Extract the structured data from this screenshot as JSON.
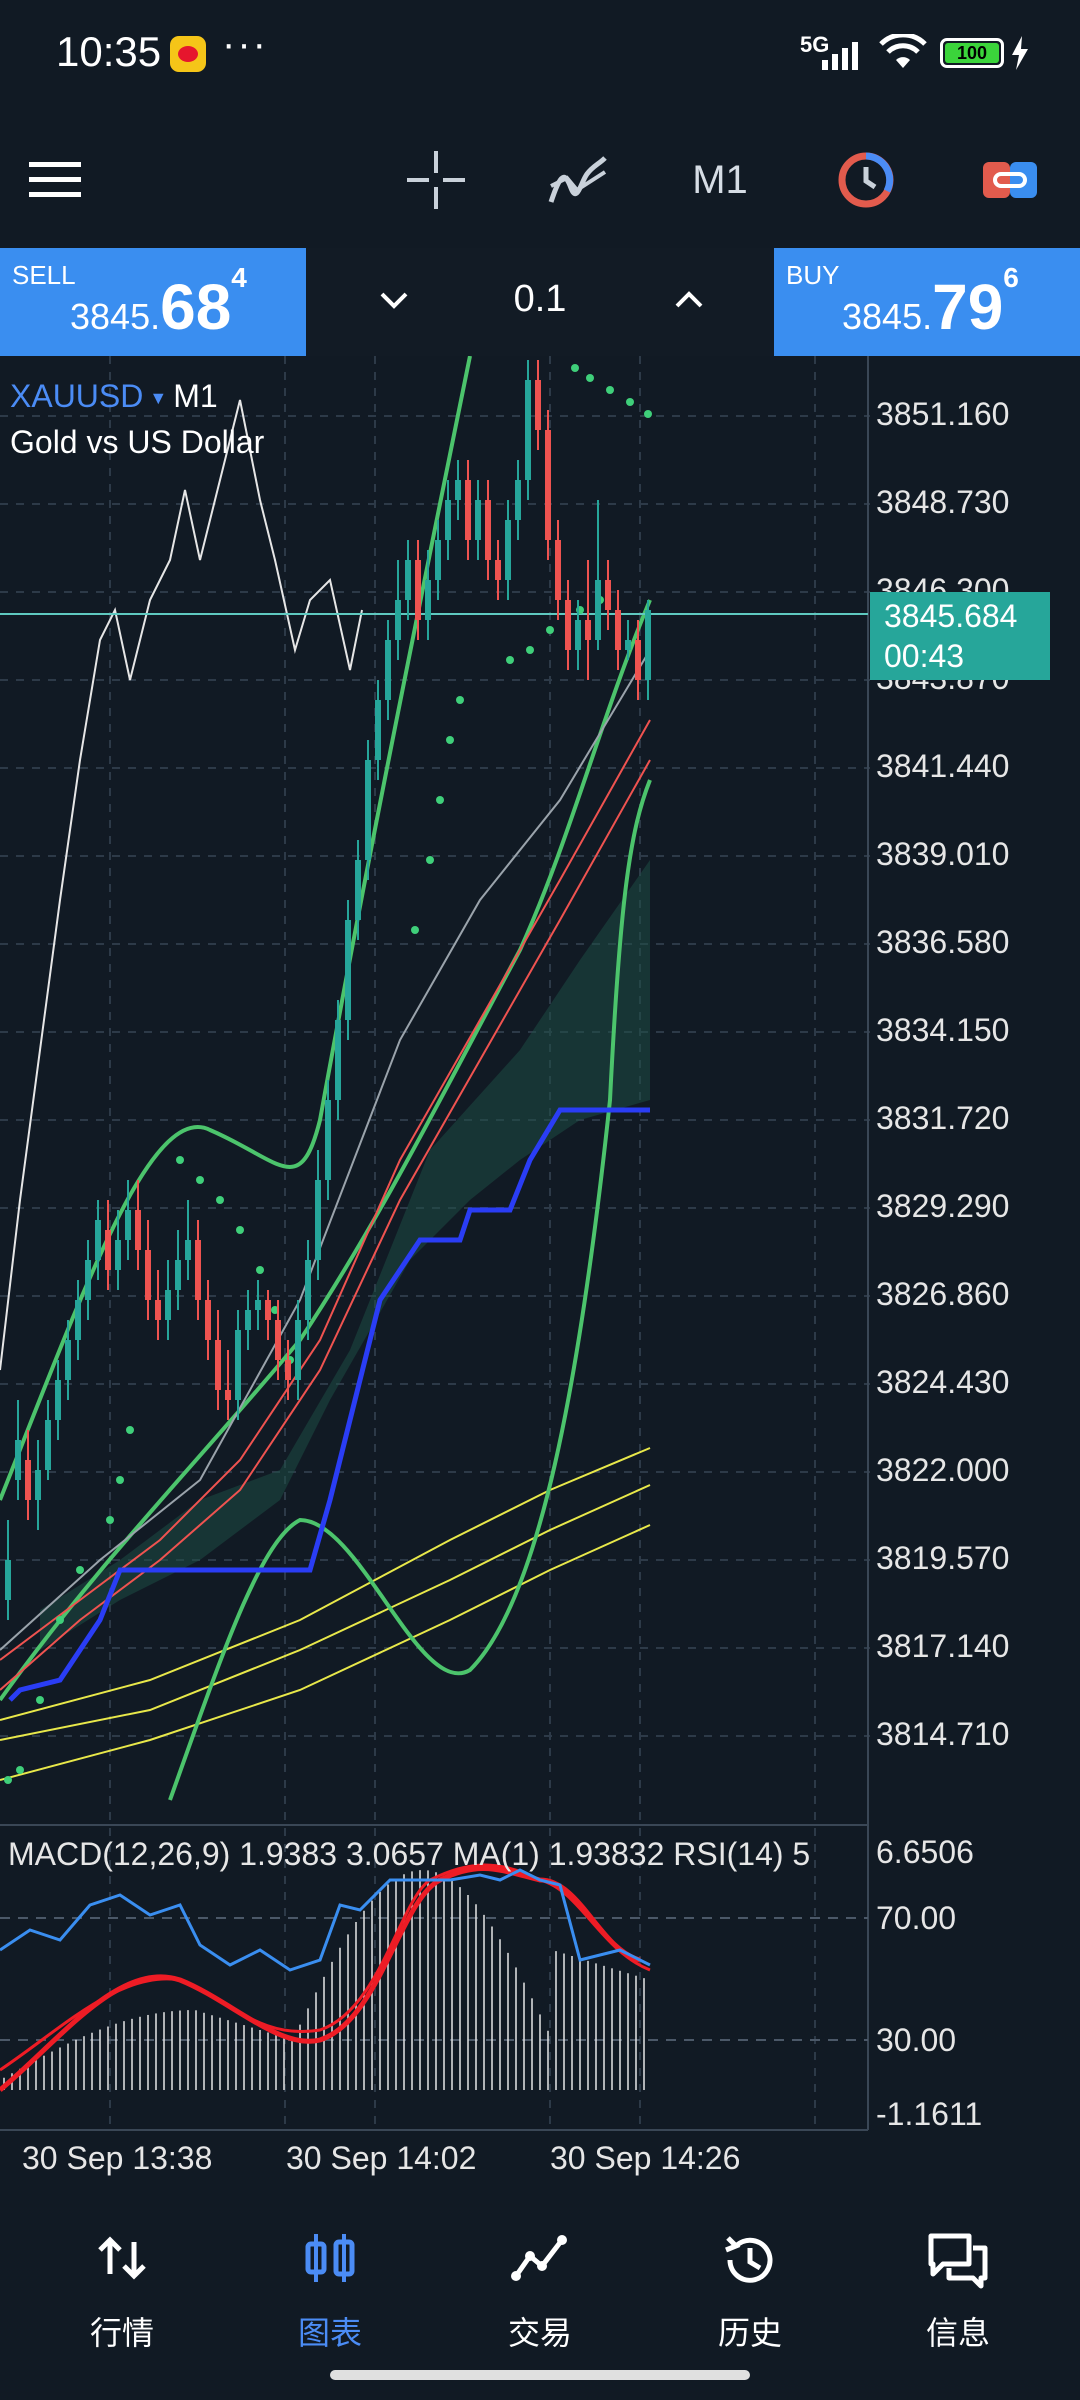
{
  "status_bar": {
    "time": "10:35",
    "dots": "···",
    "network": "5G",
    "battery": "100"
  },
  "toolbar": {
    "timeframe": "M1"
  },
  "trade": {
    "sell_label": "SELL",
    "sell_price_a": "3845.",
    "sell_price_b": "68",
    "sell_price_c": "4",
    "buy_label": "BUY",
    "buy_price_a": "3845.",
    "buy_price_b": "79",
    "buy_price_c": "6",
    "lot": "0.1"
  },
  "chart": {
    "symbol": "XAUUSD",
    "timeframe": "M1",
    "description": "Gold vs US Dollar",
    "price_levels": [
      "3851.160",
      "3848.730",
      "3846.300",
      "3843.870",
      "3841.440",
      "3839.010",
      "3836.580",
      "3834.150",
      "3831.720",
      "3829.290",
      "3826.860",
      "3824.430",
      "3822.000",
      "3819.570",
      "3817.140",
      "3814.710"
    ],
    "current_price": "3845.684",
    "countdown": "00:43",
    "indicator_label": "MACD(12,26,9) 1.9383 3.0657 MA(1) 1.93832 RSI(14) 5",
    "indicator_levels": [
      "6.6506",
      "70.00",
      "30.00",
      "-1.1611"
    ],
    "dates": [
      "30 Sep 13:38",
      "30 Sep 14:02",
      "30 Sep 14:26"
    ]
  },
  "colors": {
    "background": "#111a24",
    "sell_buy": "#3a8ef0",
    "bull": "#26a69a",
    "bear": "#ef5350",
    "accent": "#4b8cf5"
  },
  "nav": {
    "items": [
      {
        "label": "行情",
        "icon": "quotes-icon"
      },
      {
        "label": "图表",
        "icon": "chart-icon"
      },
      {
        "label": "交易",
        "icon": "trade-icon"
      },
      {
        "label": "历史",
        "icon": "history-icon"
      },
      {
        "label": "信息",
        "icon": "messages-icon"
      }
    ],
    "active": 1
  }
}
